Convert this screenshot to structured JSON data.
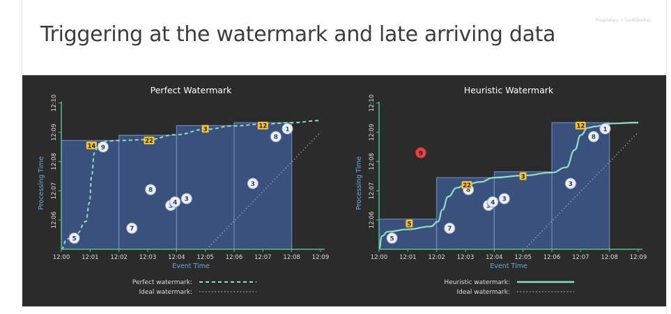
{
  "slide": {
    "title": "Triggering at the watermark and late arriving data",
    "confidential": "Proprietary + Confidential"
  },
  "colors": {
    "background": "#2b2b2c",
    "pane_fill": "#3d5584",
    "pane_border": "#7a94c8",
    "axis": "#58c08c",
    "watermark": "#8fe0c0",
    "ideal": "#9a9a9a",
    "badge_on_time": "#eef1f8",
    "badge_late": "#e8474a",
    "badge_aggregate": "#f4c430",
    "title_text": "#ffffff",
    "label_text": "#dddddd",
    "axis_label": "#6aa8e0"
  },
  "chart_data": [
    {
      "type": "scatter",
      "title": "Perfect Watermark",
      "xlabel": "Event Time",
      "ylabel": "Processing Time",
      "x_ticks": [
        "12:00",
        "12:01",
        "12:02",
        "12:03",
        "12:04",
        "12:05",
        "12:06",
        "12:07",
        "12:08",
        "12:09"
      ],
      "y_ticks": [
        "12:06",
        "12:07",
        "12:08",
        "12:09",
        "12:10"
      ],
      "xlim": [
        0,
        9
      ],
      "ylim": [
        5,
        10
      ],
      "windows": [
        {
          "start": 0,
          "end": 2,
          "fired_at": 8.72
        },
        {
          "start": 2,
          "end": 4,
          "fired_at": 8.9
        },
        {
          "start": 4,
          "end": 6,
          "fired_at": 9.23
        },
        {
          "start": 6,
          "end": 8,
          "fired_at": 9.33
        }
      ],
      "points": [
        {
          "x": 0.45,
          "y": 5.38,
          "value": "5",
          "late": false
        },
        {
          "x": 1.45,
          "y": 8.5,
          "value": "9",
          "late": false
        },
        {
          "x": 2.45,
          "y": 5.72,
          "value": "7",
          "late": false
        },
        {
          "x": 3.1,
          "y": 7.04,
          "value": "8",
          "late": false
        },
        {
          "x": 3.8,
          "y": 6.5,
          "value": "3",
          "late": false
        },
        {
          "x": 3.95,
          "y": 6.62,
          "value": "4",
          "late": false
        },
        {
          "x": 4.35,
          "y": 6.73,
          "value": "3",
          "late": false
        },
        {
          "x": 6.65,
          "y": 7.25,
          "value": "3",
          "late": false
        },
        {
          "x": 7.45,
          "y": 8.85,
          "value": "8",
          "late": false
        },
        {
          "x": 7.85,
          "y": 9.12,
          "value": "1",
          "late": false
        }
      ],
      "results": [
        {
          "x": 1.05,
          "y": 8.55,
          "value": "14"
        },
        {
          "x": 3.05,
          "y": 8.72,
          "value": "22"
        },
        {
          "x": 5.0,
          "y": 9.12,
          "value": "3"
        },
        {
          "x": 7.0,
          "y": 9.23,
          "value": "12"
        }
      ],
      "watermark_curve": [
        [
          0,
          5
        ],
        [
          0.2,
          5.35
        ],
        [
          0.55,
          5.55
        ],
        [
          0.85,
          5.95
        ],
        [
          0.98,
          6.6
        ],
        [
          1.05,
          7.5
        ],
        [
          1.15,
          8.3
        ],
        [
          1.3,
          8.6
        ],
        [
          1.6,
          8.7
        ],
        [
          2,
          8.72
        ],
        [
          3,
          8.75
        ],
        [
          4,
          8.92
        ],
        [
          5,
          9.1
        ],
        [
          6,
          9.22
        ],
        [
          7,
          9.28
        ],
        [
          8,
          9.33
        ],
        [
          9,
          9.4
        ]
      ],
      "ideal_curve": [
        [
          5.05,
          5
        ],
        [
          9,
          9.0
        ]
      ],
      "legend": [
        {
          "label": "Perfect watermark:",
          "style": "dashed"
        },
        {
          "label": "Ideal watermark:",
          "style": "dotted"
        }
      ]
    },
    {
      "type": "scatter",
      "title": "Heuristic Watermark",
      "xlabel": "Event Time",
      "ylabel": "Processing Time",
      "x_ticks": [
        "12:00",
        "12:01",
        "12:02",
        "12:03",
        "12:04",
        "12:05",
        "12:06",
        "12:07",
        "12:08",
        "12:09"
      ],
      "y_ticks": [
        "12:06",
        "12:07",
        "12:08",
        "12:09",
        "12:10"
      ],
      "xlim": [
        0,
        9
      ],
      "ylim": [
        5,
        10
      ],
      "windows": [
        {
          "start": 0,
          "end": 2,
          "fired_at": 6.03
        },
        {
          "start": 2,
          "end": 4,
          "fired_at": 7.45
        },
        {
          "start": 4,
          "end": 6,
          "fired_at": 7.65
        },
        {
          "start": 6,
          "end": 8,
          "fired_at": 9.33
        }
      ],
      "points": [
        {
          "x": 0.45,
          "y": 5.38,
          "value": "5",
          "late": false
        },
        {
          "x": 1.45,
          "y": 8.3,
          "value": "9",
          "late": true
        },
        {
          "x": 2.45,
          "y": 5.72,
          "value": "7",
          "late": false
        },
        {
          "x": 3.1,
          "y": 7.04,
          "value": "8",
          "late": false
        },
        {
          "x": 3.8,
          "y": 6.5,
          "value": "3",
          "late": false
        },
        {
          "x": 3.95,
          "y": 6.62,
          "value": "4",
          "late": false
        },
        {
          "x": 4.35,
          "y": 6.73,
          "value": "3",
          "late": false
        },
        {
          "x": 6.65,
          "y": 7.25,
          "value": "3",
          "late": false
        },
        {
          "x": 7.45,
          "y": 8.85,
          "value": "8",
          "late": false
        },
        {
          "x": 7.85,
          "y": 9.12,
          "value": "1",
          "late": false
        }
      ],
      "results": [
        {
          "x": 1.05,
          "y": 5.88,
          "value": "5"
        },
        {
          "x": 3.05,
          "y": 7.2,
          "value": "22"
        },
        {
          "x": 5.0,
          "y": 7.5,
          "value": "3"
        },
        {
          "x": 7.0,
          "y": 9.23,
          "value": "12"
        }
      ],
      "watermark_curve": [
        [
          0,
          5
        ],
        [
          0.1,
          5.45
        ],
        [
          0.3,
          5.6
        ],
        [
          1,
          5.68
        ],
        [
          1.8,
          5.78
        ],
        [
          2.05,
          5.95
        ],
        [
          2.2,
          6.35
        ],
        [
          2.4,
          6.8
        ],
        [
          2.7,
          7.1
        ],
        [
          3,
          7.2
        ],
        [
          3.5,
          7.3
        ],
        [
          4,
          7.45
        ],
        [
          5,
          7.52
        ],
        [
          6,
          7.62
        ],
        [
          6.5,
          7.8
        ],
        [
          6.8,
          8.4
        ],
        [
          7.0,
          8.9
        ],
        [
          7.25,
          9.15
        ],
        [
          7.5,
          9.2
        ],
        [
          8,
          9.3
        ],
        [
          9,
          9.33
        ]
      ],
      "ideal_curve": [
        [
          5.05,
          5
        ],
        [
          9,
          9.0
        ]
      ],
      "legend": [
        {
          "label": "Heuristic watermark:",
          "style": "solid"
        },
        {
          "label": "Ideal watermark:",
          "style": "dotted"
        }
      ]
    }
  ]
}
